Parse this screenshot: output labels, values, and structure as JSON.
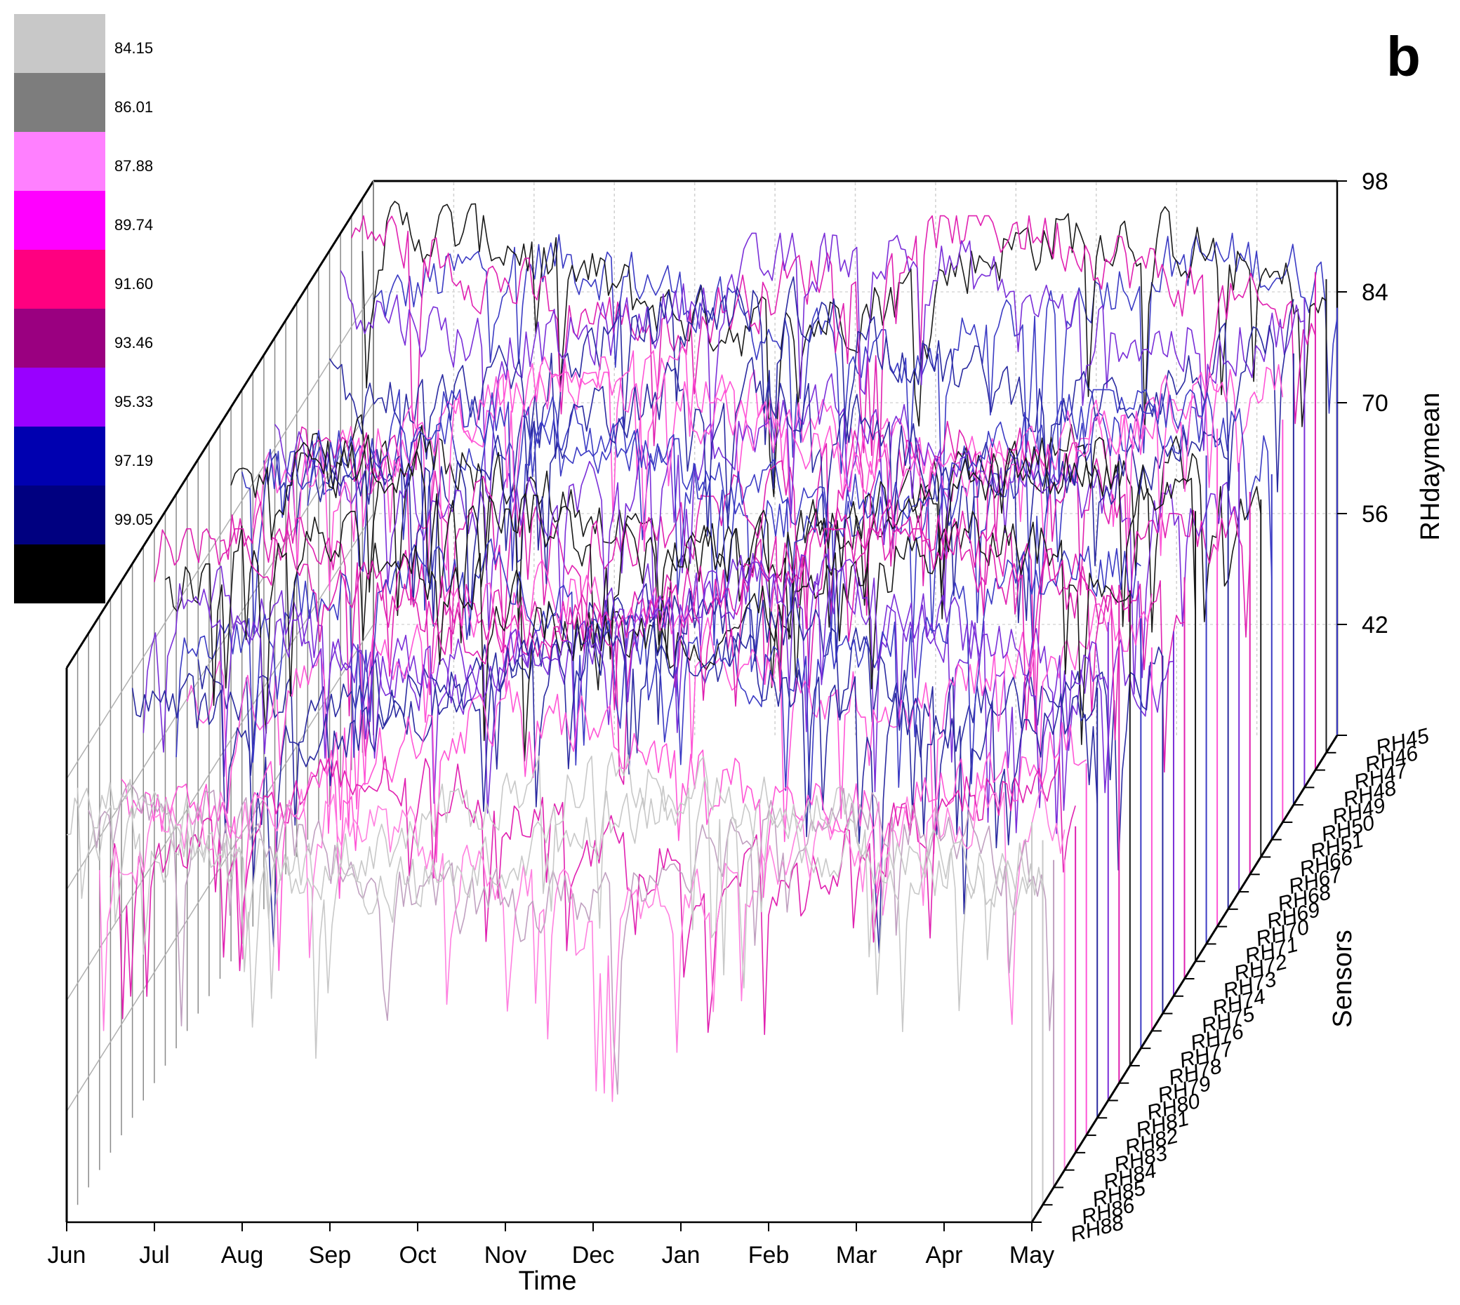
{
  "panel_label": "b",
  "chart_data": {
    "type": "line",
    "projection": "3d-waterfall",
    "xlabel": "Time",
    "ylabel": "RHdaymean",
    "zlabel": "Sensors",
    "x_categories": [
      "Jun",
      "Jul",
      "Aug",
      "Sep",
      "Oct",
      "Nov",
      "Dec",
      "Jan",
      "Feb",
      "Mar",
      "Apr",
      "May"
    ],
    "y_ticks": [
      42,
      56,
      70,
      84,
      98
    ],
    "ylim": [
      28,
      98
    ],
    "sensors": [
      "RH45",
      "RH46",
      "RH47",
      "RH48",
      "RH49",
      "RH50",
      "RH51",
      "RH66",
      "RH67",
      "RH68",
      "RH69",
      "RH70",
      "RH71",
      "RH72",
      "RH73",
      "RH74",
      "RH75",
      "RH76",
      "RH77",
      "RH78",
      "RH79",
      "RH80",
      "RH81",
      "RH82",
      "RH83",
      "RH84",
      "RH85",
      "RH86",
      "RH88"
    ],
    "color_scale": {
      "labels": [
        "84.15",
        "86.01",
        "87.88",
        "89.74",
        "91.60",
        "93.46",
        "95.33",
        "97.19",
        "99.05"
      ],
      "colors": [
        "#c8c8c8",
        "#7d7d7d",
        "#ff80ff",
        "#ff00ff",
        "#ff0080",
        "#9a0080",
        "#9900ff",
        "#0000b0",
        "#000080",
        "#000000"
      ]
    },
    "series_colors": [
      "#3b3bc4",
      "#1a1a1a",
      "#e020b0",
      "#7a2fd8",
      "#2a2aa0",
      "#ff55d6",
      "#3b3bc4",
      "#1a1a1a",
      "#e020b0",
      "#7a2fd8",
      "#2a2aa0",
      "#ff55d6",
      "#3b3bc4",
      "#1a1a1a",
      "#e020b0",
      "#7a2fd8",
      "#2a2aa0",
      "#ff55d6",
      "#3b3bc4",
      "#1a1a1a",
      "#e020b0",
      "#7a2fd8",
      "#2a2aa0",
      "#ff55d6",
      "#e020b0",
      "#ff80e0",
      "#c0a0c0",
      "#c8c8c8",
      "#c8c8c8"
    ],
    "grid": true
  }
}
